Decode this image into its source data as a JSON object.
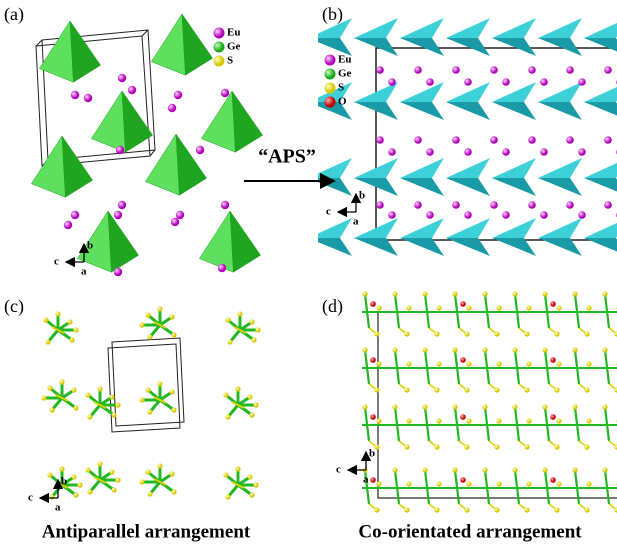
{
  "panels": [
    {
      "label": "(a)",
      "legend": [
        "Eu",
        "Ge",
        "S"
      ],
      "axes": {
        "vertical": "b",
        "horizontal": "c",
        "out": "a"
      }
    },
    {
      "label": "(b)",
      "legend": [
        "Eu",
        "Ge",
        "S",
        "O"
      ],
      "axes": {
        "vertical": "b",
        "horizontal": "c",
        "out": "a"
      }
    },
    {
      "label": "(c)",
      "axes": {
        "vertical": "b",
        "horizontal": "c",
        "out": "a"
      },
      "caption": "Antiparallel arrangement"
    },
    {
      "label": "(d)",
      "axes": {
        "vertical": "b",
        "horizontal": "c",
        "out": "a"
      },
      "caption": "Co-orientated arrangement"
    }
  ],
  "arrow_label": "“APS”"
}
